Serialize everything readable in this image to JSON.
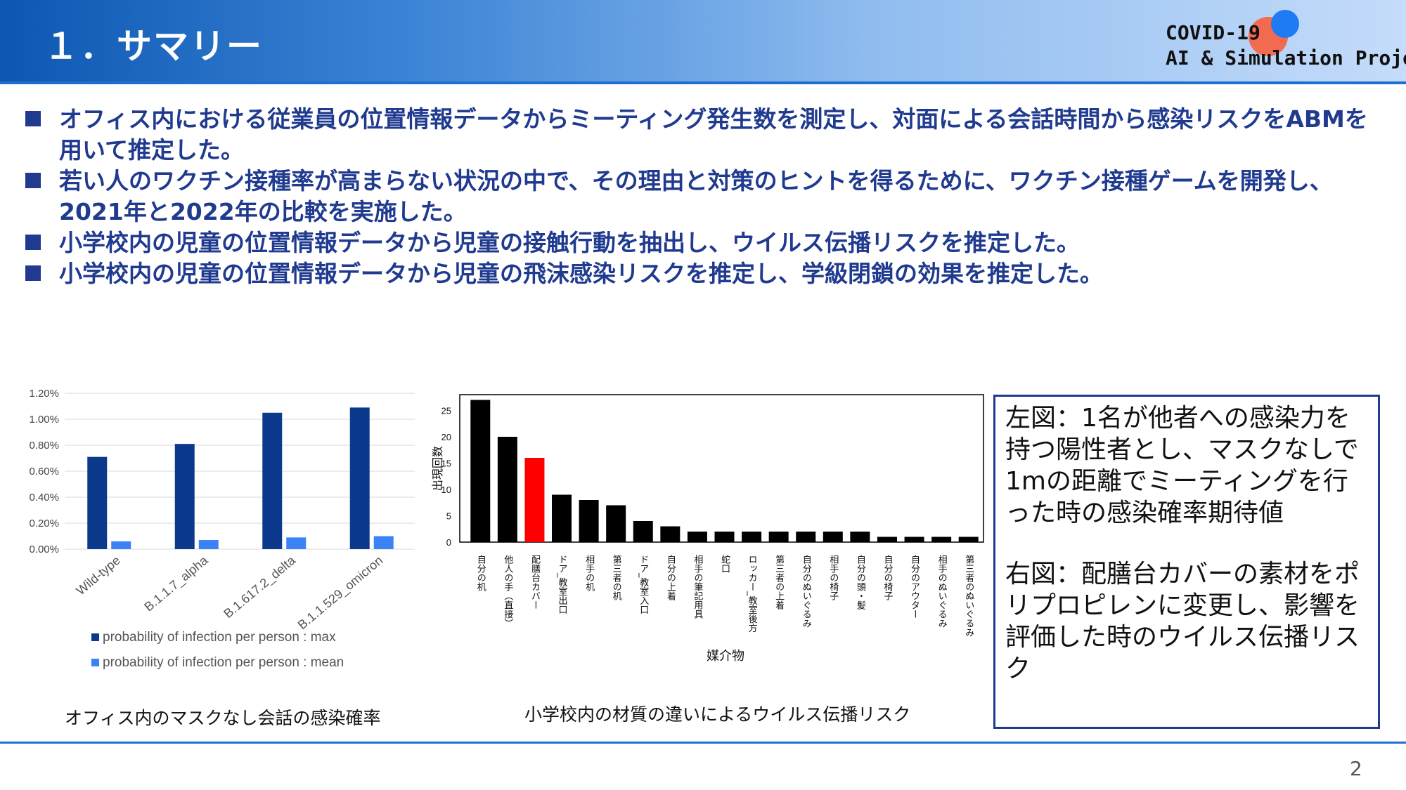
{
  "header": {
    "title": "１．サマリー",
    "logo_line1": "COVID-19",
    "logo_line2": "AI & Simulation Project",
    "logo_colors": {
      "red": "#f26a4f",
      "blue": "#1e7bf2"
    }
  },
  "bullets": [
    "オフィス内における従業員の位置情報データからミーティング発生数を測定し、対面による会話時間から感染リスクをABMを用いて推定した。",
    "若い人のワクチン接種率が高まらない状況の中で、その理由と対策のヒントを得るために、ワクチン接種ゲームを開発し、2021年と2022年の比較を実施した。",
    "小学校内の児童の位置情報データから児童の接触行動を抽出し、ウイルス伝播リスクを推定した。",
    "小学校内の児童の位置情報データから児童の飛沫感染リスクを推定し、学級閉鎖の効果を推定した。"
  ],
  "chart_data": [
    {
      "type": "bar",
      "categories": [
        "Wild-type",
        "B.1.1.7_alpha",
        "B.1.617.2_delta",
        "B.1.1.529_omicron"
      ],
      "series": [
        {
          "name": "probability of infection per person : max",
          "values": [
            0.0071,
            0.0081,
            0.0105,
            0.0109
          ],
          "color": "#0b3a8c"
        },
        {
          "name": "probability of infection per person : mean",
          "values": [
            0.0006,
            0.0007,
            0.0009,
            0.001
          ],
          "color": "#3b82f6"
        }
      ],
      "yticks": [
        "0.00%",
        "0.20%",
        "0.40%",
        "0.60%",
        "0.80%",
        "1.00%",
        "1.20%"
      ],
      "ylim": [
        0,
        0.012
      ],
      "legend_position": "bottom",
      "grid": true,
      "caption": "オフィス内のマスクなし会話の感染確率"
    },
    {
      "type": "bar",
      "categories": [
        "自分の机",
        "他人の手（直接）",
        "配膳台カバー",
        "ドア_教室出口",
        "相手の机",
        "第三者の机",
        "ドア_教室入口",
        "自分の上着",
        "相手の筆記用具",
        "蛇口",
        "ロッカー_教室後方",
        "第三者の上着",
        "自分のぬいぐるみ",
        "相手の椅子",
        "自分の頭・髪",
        "自分の椅子",
        "自分のアウター",
        "相手のぬいぐるみ",
        "第三者のぬいぐるみ"
      ],
      "values": [
        27,
        20,
        16,
        9,
        8,
        7,
        4,
        3,
        2,
        2,
        2,
        2,
        2,
        2,
        2,
        1,
        1,
        1,
        1
      ],
      "highlight_index": 2,
      "colors": {
        "bar": "#000000",
        "highlight": "#ff0000"
      },
      "yticks": [
        "0",
        "5",
        "10",
        "15",
        "20",
        "25"
      ],
      "ylim": [
        0,
        28
      ],
      "xlabel": "媒介物",
      "ylabel": "出現回数",
      "caption": "小学校内の材質の違いによるウイルス伝播リスク"
    }
  ],
  "notes": {
    "left": "左図：1名が他者への感染力を持つ陽性者とし、マスクなしで1mの距離でミーティングを行った時の感染確率期待値",
    "right": "右図：配膳台カバーの素材をポリプロピレンに変更し、影響を評価した時のウイルス伝播リスク"
  },
  "page_number": "2"
}
